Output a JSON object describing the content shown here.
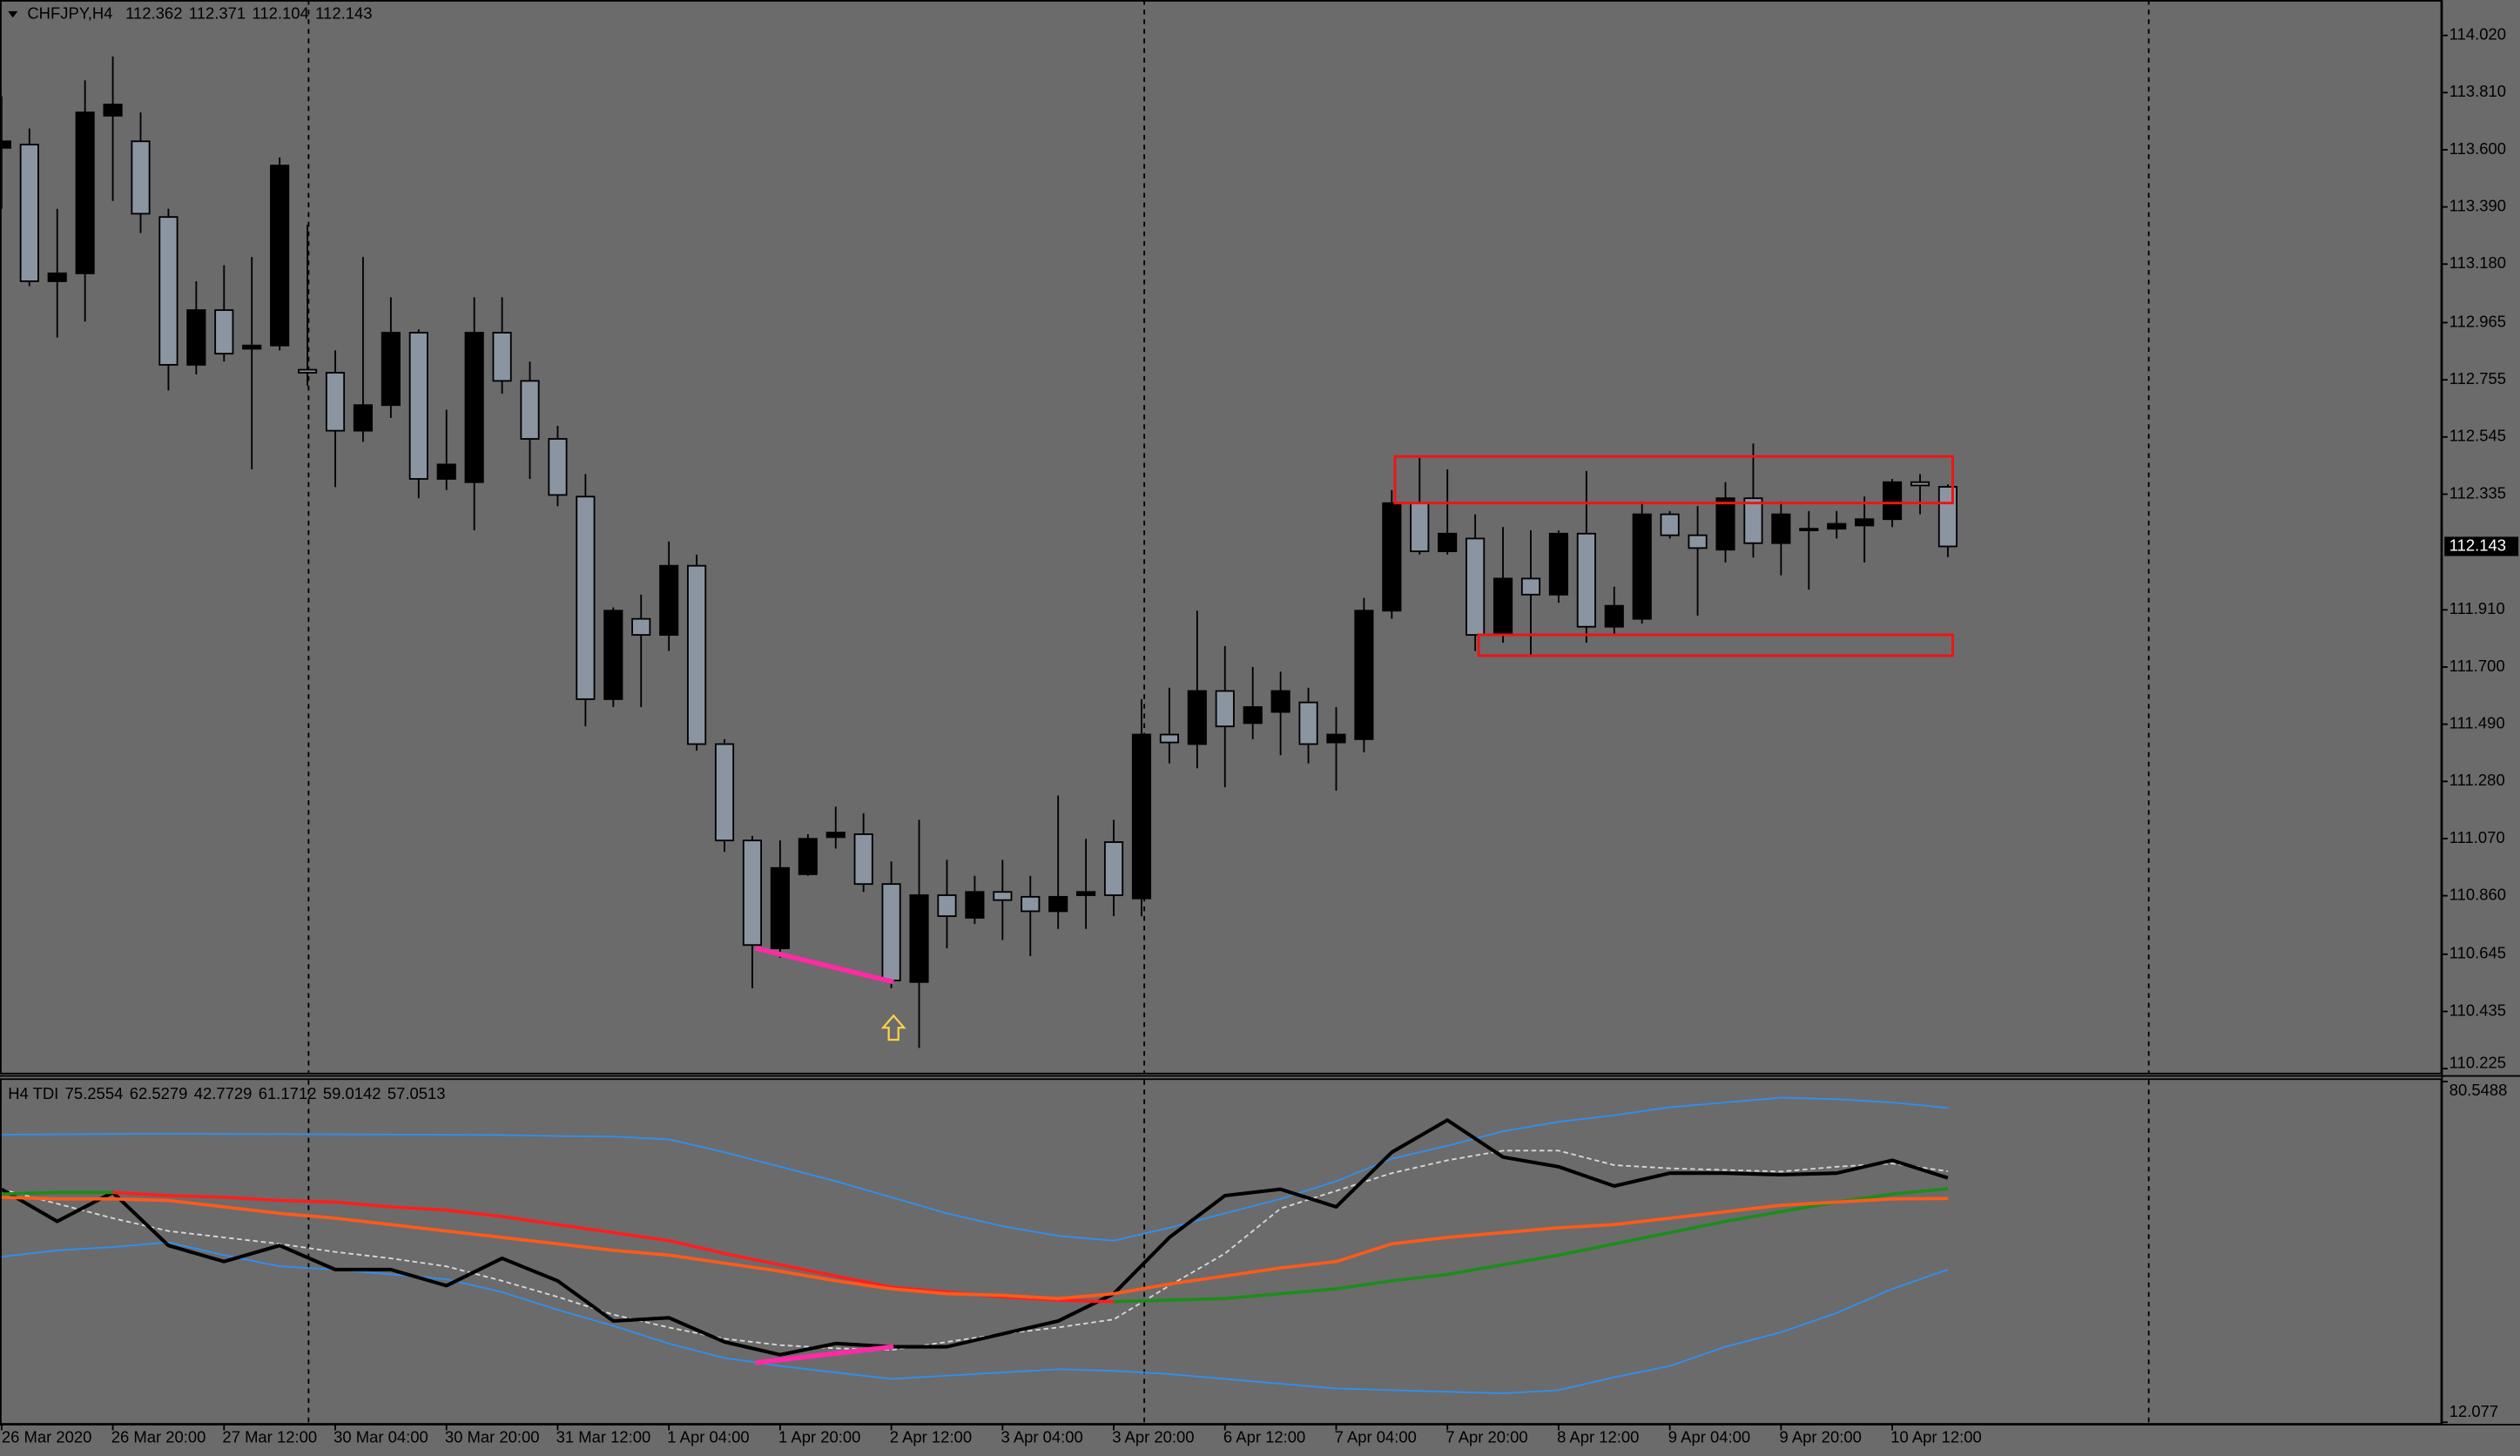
{
  "chart_data": [
    {
      "type": "candlestick",
      "title": "CHFJPY,H4",
      "categories": [
        "26 Mar 2020",
        null,
        null,
        null,
        "26 Mar 20:00",
        null,
        null,
        null,
        "27 Mar 12:00",
        null,
        null,
        null,
        "30 Mar 04:00",
        null,
        null,
        null,
        "30 Mar 20:00",
        null,
        null,
        null,
        "31 Mar 12:00",
        null,
        null,
        null,
        "1 Apr 04:00",
        null,
        null,
        null,
        "1 Apr 20:00",
        null,
        null,
        null,
        "2 Apr 12:00",
        null,
        null,
        null,
        "3 Apr 04:00",
        null,
        null,
        null,
        "3 Apr 20:00",
        null,
        null,
        null,
        "6 Apr 12:00",
        null,
        null,
        null,
        "7 Apr 04:00",
        null,
        null,
        null,
        "7 Apr 20:00",
        null,
        null,
        null,
        "8 Apr 12:00",
        null,
        null,
        null,
        "9 Apr 04:00",
        null,
        null,
        null,
        "9 Apr 20:00",
        null,
        null,
        null,
        "10 Apr 12:00",
        null,
        null
      ],
      "open": [
        113.607,
        113.619,
        113.117,
        113.146,
        113.725,
        113.631,
        113.353,
        112.81,
        113.011,
        112.869,
        112.881,
        112.792,
        112.781,
        112.568,
        112.662,
        112.928,
        112.391,
        112.379,
        112.928,
        112.751,
        112.538,
        112.326,
        111.582,
        111.877,
        111.818,
        112.072,
        111.417,
        111.063,
        110.667,
        110.939,
        111.075,
        111.086,
        110.903,
        110.543,
        110.862,
        110.779,
        110.874,
        110.856,
        110.803,
        110.862,
        111.057,
        110.85,
        111.452,
        111.417,
        111.612,
        111.494,
        111.535,
        111.57,
        111.423,
        111.435,
        111.907,
        112.302,
        112.125,
        112.172,
        111.818,
        112.025,
        111.966,
        112.19,
        111.848,
        111.877,
        112.261,
        112.184,
        112.131,
        112.32,
        112.155,
        112.202,
        112.208,
        112.22,
        112.243,
        112.379,
        112.362
      ],
      "high": [
        113.796,
        113.678,
        113.383,
        113.855,
        113.943,
        113.737,
        113.383,
        113.117,
        113.176,
        113.206,
        113.572,
        113.324,
        112.863,
        113.206,
        113.058,
        112.94,
        112.645,
        113.058,
        113.058,
        112.822,
        112.586,
        112.409,
        111.919,
        111.966,
        112.161,
        112.113,
        111.435,
        111.08,
        111.063,
        111.086,
        111.187,
        111.163,
        110.986,
        111.139,
        110.992,
        110.933,
        110.992,
        110.933,
        111.228,
        111.069,
        111.139,
        111.582,
        111.624,
        111.907,
        111.777,
        111.7,
        111.683,
        111.624,
        111.553,
        111.954,
        112.35,
        112.468,
        112.426,
        112.261,
        112.214,
        112.202,
        112.202,
        112.42,
        111.995,
        112.308,
        112.273,
        112.291,
        112.379,
        112.521,
        112.308,
        112.273,
        112.273,
        112.326,
        112.391,
        112.409,
        112.371
      ],
      "low": [
        113.383,
        113.099,
        112.91,
        112.969,
        113.412,
        113.294,
        112.716,
        112.775,
        112.822,
        112.426,
        112.863,
        112.733,
        112.361,
        112.527,
        112.615,
        112.32,
        112.35,
        112.202,
        112.704,
        112.391,
        112.291,
        111.482,
        111.553,
        111.553,
        111.759,
        111.393,
        111.021,
        110.52,
        110.632,
        110.933,
        111.033,
        110.874,
        110.52,
        110.301,
        110.667,
        110.756,
        110.697,
        110.638,
        110.738,
        110.738,
        110.785,
        110.785,
        111.346,
        111.328,
        111.258,
        111.435,
        111.376,
        111.346,
        111.246,
        111.387,
        111.877,
        112.113,
        112.113,
        111.759,
        111.789,
        111.742,
        111.936,
        111.789,
        111.818,
        111.86,
        112.172,
        111.889,
        112.084,
        112.102,
        112.037,
        111.984,
        112.172,
        112.084,
        112.214,
        112.261,
        112.104
      ],
      "close": [
        113.631,
        113.117,
        113.146,
        113.737,
        113.766,
        113.365,
        112.81,
        113.011,
        112.851,
        112.881,
        113.542,
        112.781,
        112.568,
        112.662,
        112.928,
        112.391,
        112.444,
        112.928,
        112.751,
        112.538,
        112.332,
        111.582,
        111.907,
        111.818,
        112.072,
        111.417,
        111.063,
        110.679,
        110.962,
        111.069,
        111.092,
        110.903,
        110.549,
        110.862,
        110.785,
        110.874,
        110.844,
        110.803,
        110.856,
        110.874,
        110.862,
        111.452,
        111.423,
        111.612,
        111.482,
        111.553,
        111.612,
        111.417,
        111.452,
        111.907,
        112.302,
        112.125,
        112.19,
        111.818,
        112.025,
        111.966,
        112.19,
        111.848,
        111.925,
        112.261,
        112.184,
        112.137,
        112.32,
        112.155,
        112.261,
        112.208,
        112.226,
        112.243,
        112.379,
        112.367,
        112.143
      ],
      "up_color": "#000000",
      "down_color": "#8b95a2",
      "ylim": [
        110.207,
        114.15
      ],
      "yticks": [
        {
          "value": 114.02,
          "label": "114.020"
        },
        {
          "value": 113.81,
          "label": "113.810"
        },
        {
          "value": 113.6,
          "label": "113.600"
        },
        {
          "value": 113.39,
          "label": "113.390"
        },
        {
          "value": 113.18,
          "label": "113.180"
        },
        112.965,
        112.755,
        112.545,
        112.335,
        {
          "value": 111.91,
          "label": "111.910"
        },
        {
          "value": 111.7,
          "label": "111.700"
        },
        {
          "value": 111.49,
          "label": "111.490"
        },
        {
          "value": 111.28,
          "label": "111.280"
        },
        {
          "value": 111.07,
          "label": "111.070"
        },
        {
          "value": 110.86,
          "label": "110.860"
        },
        110.645,
        110.435,
        110.225
      ]
    },
    {
      "type": "line",
      "title": "H4 TDI",
      "x": [
        0,
        2,
        4,
        6,
        8,
        10,
        12,
        14,
        16,
        18,
        20,
        22,
        24,
        26,
        28,
        30,
        32,
        34,
        36,
        38,
        40,
        42,
        44,
        46,
        48,
        50,
        52,
        54,
        56,
        58,
        60,
        62,
        64,
        66,
        68,
        70
      ],
      "ylim": [
        12.077,
        80.5488
      ],
      "yticks": [
        12.077,
        80.5488
      ],
      "series": [
        {
          "color": "#2f8ff0",
          "width": 1,
          "values": [
            69.89,
            69.95,
            70.02,
            70.05,
            70.02,
            69.98,
            69.95,
            69.9,
            69.86,
            69.8,
            69.6,
            69.5,
            68.92,
            66.34,
            63.43,
            60.52,
            57.29,
            54.06,
            51.48,
            49.54,
            48.57,
            51.16,
            54.06,
            56.97,
            60.52,
            65.05,
            67.63,
            70.56,
            72.47,
            73.77,
            75.38,
            76.35,
            77.32,
            77.0,
            76.35,
            75.2554
          ]
        },
        {
          "color": "#d8d8d8",
          "width": 1,
          "dashed": true,
          "values": [
            58.91,
            56.0,
            53.09,
            50.51,
            49.22,
            47.93,
            46.31,
            45.02,
            43.41,
            40.5,
            37.27,
            33.71,
            31.13,
            28.87,
            27.58,
            26.93,
            26.61,
            28.22,
            29.84,
            31.13,
            32.75,
            39.53,
            45.99,
            55.03,
            58.59,
            62.14,
            64.72,
            66.66,
            66.66,
            63.75,
            63.11,
            62.78,
            62.46,
            63.43,
            64.08,
            62.5279
          ]
        },
        {
          "color": "#2f8ff0",
          "width": 1,
          "values": [
            45.34,
            46.63,
            47.28,
            48.25,
            45.67,
            43.41,
            42.76,
            41.79,
            40.82,
            38.24,
            34.68,
            31.45,
            27.9,
            24.99,
            23.38,
            22.09,
            20.79,
            21.44,
            22.09,
            22.73,
            22.41,
            21.76,
            20.79,
            19.82,
            18.86,
            18.53,
            18.21,
            17.89,
            18.53,
            21.12,
            23.38,
            27.25,
            30.16,
            34.04,
            38.88,
            42.7729
          ]
        },
        {
          "color": "#000000",
          "width": 2.2,
          "values": [
            58.91,
            52.45,
            58.26,
            47.6,
            44.37,
            47.6,
            42.76,
            42.76,
            39.53,
            45.02,
            40.5,
            32.42,
            33.07,
            28.22,
            25.64,
            27.9,
            27.25,
            27.25,
            29.84,
            32.42,
            37.91,
            49.22,
            57.62,
            58.91,
            55.36,
            66.34,
            72.8,
            65.37,
            63.43,
            59.55,
            62.14,
            62.14,
            61.82,
            62.14,
            64.72,
            61.1712
          ]
        },
        {
          "color": "#1c8c1c",
          "down_color": "#ff1e1e",
          "width": 2,
          "values": [
            57.94,
            58.26,
            58.26,
            57.62,
            57.29,
            56.65,
            56.32,
            55.36,
            54.71,
            53.42,
            51.8,
            50.19,
            48.57,
            45.99,
            43.73,
            41.47,
            39.21,
            38.24,
            37.27,
            36.62,
            36.3,
            36.62,
            36.94,
            37.91,
            38.88,
            40.5,
            41.79,
            43.73,
            45.67,
            47.93,
            50.19,
            52.45,
            54.39,
            56.32,
            57.94,
            59.0142
          ]
        },
        {
          "color": "#ff5a1a",
          "width": 2,
          "values": [
            57.29,
            56.97,
            56.97,
            56.65,
            55.36,
            54.06,
            53.09,
            51.8,
            50.51,
            49.22,
            47.93,
            46.63,
            45.67,
            44.05,
            42.44,
            40.5,
            38.88,
            37.91,
            37.59,
            36.94,
            37.91,
            39.85,
            41.47,
            43.08,
            44.37,
            47.93,
            49.22,
            50.19,
            51.16,
            51.8,
            53.09,
            54.39,
            55.68,
            56.32,
            56.97,
            57.0513
          ]
        }
      ]
    }
  ]
}
